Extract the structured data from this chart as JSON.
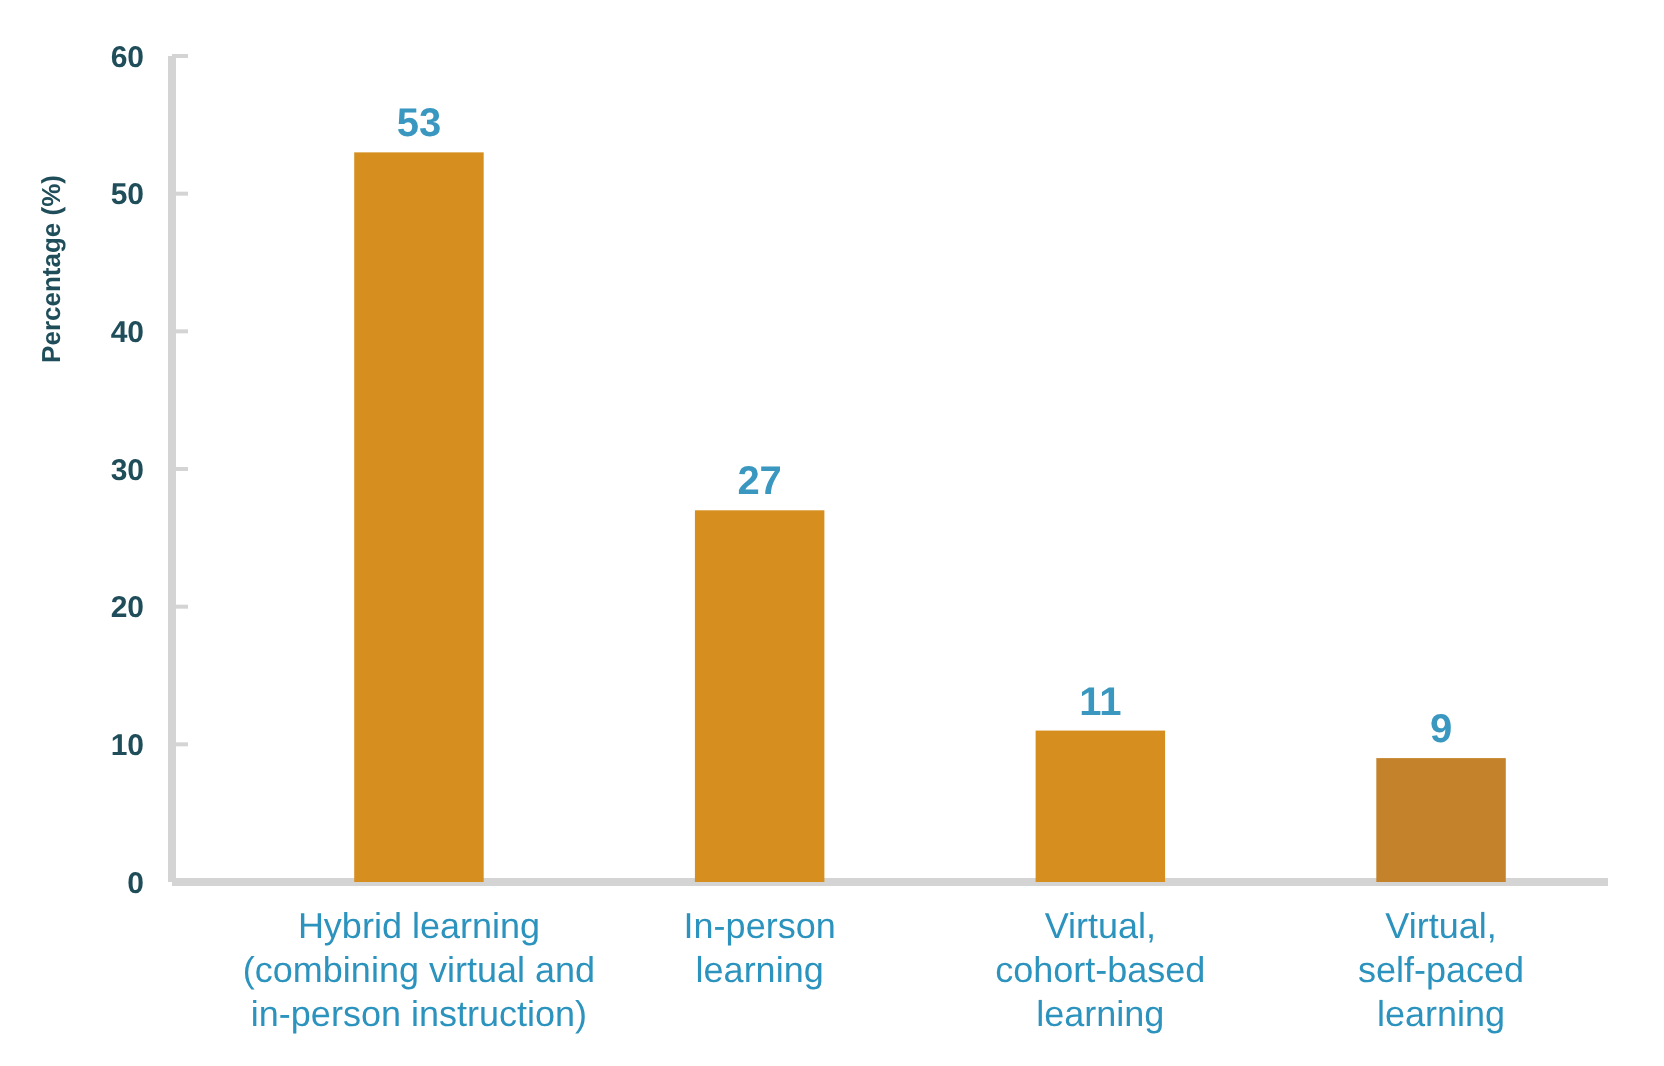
{
  "chart_data": {
    "type": "bar",
    "ylabel": "Percentage (%)",
    "categories": [
      "Hybrid learning\n(combining virtual and\nin-person instruction)",
      "In-person\nlearning",
      "Virtual,\ncohort-based\nlearning",
      "Virtual,\nself-paced\nlearning"
    ],
    "values": [
      53,
      27,
      11,
      9
    ],
    "colors": [
      "#d68f1e",
      "#d68f1e",
      "#d68f1e",
      "#c4822a"
    ],
    "ylim": [
      0,
      60
    ],
    "yticks": [
      0,
      10,
      20,
      30,
      40,
      50,
      60
    ],
    "grid": false,
    "data_labels": true
  }
}
